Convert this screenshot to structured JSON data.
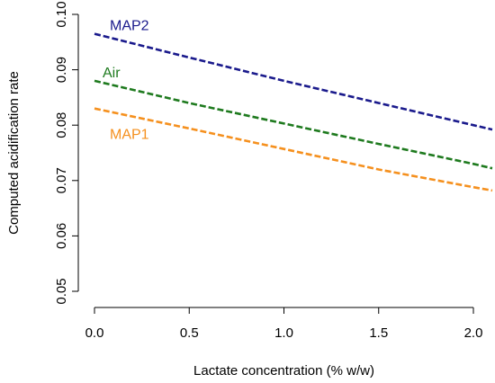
{
  "chart_data": {
    "type": "line",
    "title": "",
    "xlabel": "Lactate concentration (% w/w)",
    "ylabel": "Computed acidification rate",
    "xlim": [
      0,
      2.1
    ],
    "ylim": [
      0.05,
      0.1
    ],
    "x_ticks": [
      0.0,
      0.5,
      1.0,
      1.5,
      2.0
    ],
    "x_tick_labels": [
      "0.0",
      "0.5",
      "1.0",
      "1.5",
      "2.0"
    ],
    "y_ticks": [
      0.05,
      0.06,
      0.07,
      0.08,
      0.09,
      0.1
    ],
    "y_tick_labels": [
      "0.05",
      "0.06",
      "0.07",
      "0.08",
      "0.09",
      "0.10"
    ],
    "grid": false,
    "legend": "none",
    "series": [
      {
        "name": "MAP2",
        "color": "#1a1a8c",
        "x": [
          0.0,
          0.5,
          1.0,
          1.5,
          2.0,
          2.1
        ],
        "y": [
          0.0965,
          0.0922,
          0.088,
          0.084,
          0.08,
          0.0792
        ]
      },
      {
        "name": "Air",
        "color": "#1e7a1e",
        "x": [
          0.0,
          0.5,
          1.0,
          1.5,
          2.0,
          2.1
        ],
        "y": [
          0.088,
          0.084,
          0.0803,
          0.0766,
          0.073,
          0.0722
        ]
      },
      {
        "name": "MAP1",
        "color": "#f5901e",
        "x": [
          0.0,
          0.5,
          1.0,
          1.5,
          2.0,
          2.1
        ],
        "y": [
          0.083,
          0.0794,
          0.0757,
          0.072,
          0.0688,
          0.0682
        ]
      }
    ]
  }
}
